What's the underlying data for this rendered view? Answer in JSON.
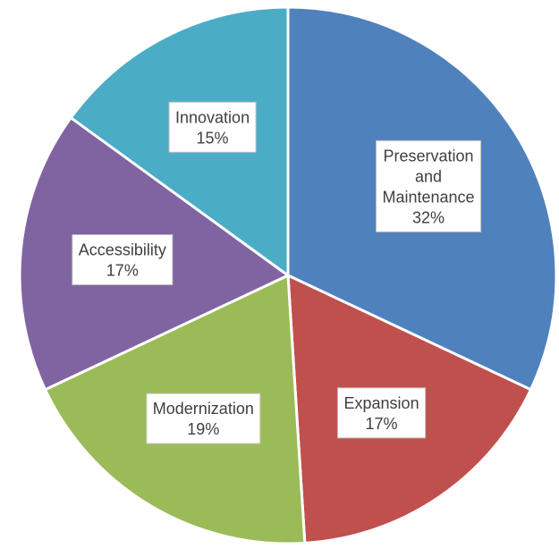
{
  "chart_data": {
    "type": "pie",
    "title": "",
    "start_angle_deg": 0,
    "direction": "clockwise",
    "legend": "none",
    "slices": [
      {
        "category": "Preservation and Maintenance",
        "label_lines": [
          "Preservation",
          "and",
          "Maintenance"
        ],
        "value": 32,
        "percent_label": "32%",
        "color": "#4F81BD"
      },
      {
        "category": "Expansion",
        "label_lines": [
          "Expansion"
        ],
        "value": 17,
        "percent_label": "17%",
        "color": "#C0504D"
      },
      {
        "category": "Modernization",
        "label_lines": [
          "Modernization"
        ],
        "value": 19,
        "percent_label": "19%",
        "color": "#9BBB59"
      },
      {
        "category": "Accessibility",
        "label_lines": [
          "Accessibility"
        ],
        "value": 17,
        "percent_label": "17%",
        "color": "#8064A2"
      },
      {
        "category": "Innovation",
        "label_lines": [
          "Innovation"
        ],
        "value": 15,
        "percent_label": "15%",
        "color": "#4BACC6"
      }
    ]
  }
}
